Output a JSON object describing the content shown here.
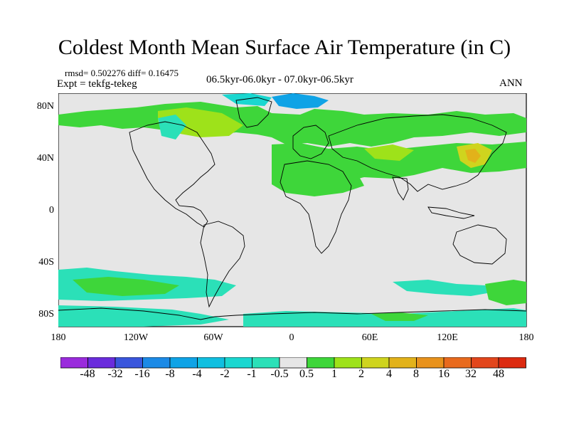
{
  "title": "Coldest Month Mean Surface Air Temperature (in C)",
  "stats": "rmsd= 0.502276 diff= 0.16475",
  "experiment": "Expt = tekfg-tekeg",
  "period": "06.5kyr-06.0kyr - 07.0kyr-06.5kyr",
  "season": "ANN",
  "map": {
    "lat_ticks": [
      "80N",
      "40N",
      "0",
      "40S",
      "80S"
    ],
    "lon_ticks": [
      "180",
      "120W",
      "60W",
      "0",
      "60E",
      "120E",
      "180"
    ],
    "background_color": "#e6e6e6",
    "coastline_color": "#000000"
  },
  "colorbar": {
    "labels": [
      "-48",
      "-32",
      "-16",
      "-8",
      "-4",
      "-2",
      "-1",
      "-0.5",
      "0.5",
      "1",
      "2",
      "4",
      "8",
      "16",
      "32",
      "48"
    ],
    "colors": [
      "#9a2bdc",
      "#6a2cdc",
      "#3a56dc",
      "#1c8ae6",
      "#0fa3e6",
      "#10bfe0",
      "#1ad7d0",
      "#2be0b8",
      "#e6e6e6",
      "#3ed63a",
      "#9ee21a",
      "#cfd41e",
      "#e2b21a",
      "#e8921c",
      "#e86a1e",
      "#e2461c",
      "#dc2a10"
    ]
  }
}
